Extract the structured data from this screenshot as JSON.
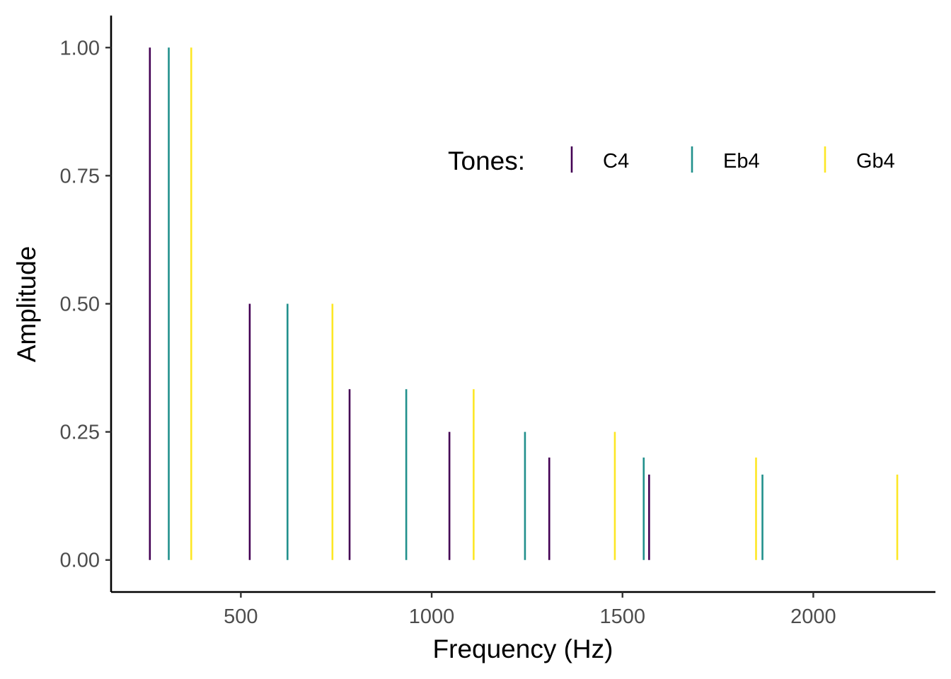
{
  "chart_data": {
    "type": "bar",
    "xlabel": "Frequency (Hz)",
    "ylabel": "Amplitude",
    "xlim": [
      160,
      2320
    ],
    "ylim": [
      -0.0625,
      1.0625
    ],
    "x_ticks": [
      500,
      1000,
      1500,
      2000
    ],
    "x_tick_labels": [
      "500",
      "1000",
      "1500",
      "2000"
    ],
    "y_ticks": [
      0,
      0.25,
      0.5,
      0.75,
      1.0
    ],
    "y_tick_labels": [
      "0.00",
      "0.25",
      "0.50",
      "0.75",
      "1.00"
    ],
    "grid": false,
    "legend": {
      "title": "Tones:",
      "position": "top-right",
      "orientation": "horizontal"
    },
    "series": [
      {
        "name": "C4",
        "color": "#440154",
        "points": [
          {
            "x": 261.63,
            "y": 1.0
          },
          {
            "x": 523.25,
            "y": 0.5
          },
          {
            "x": 784.88,
            "y": 0.3333
          },
          {
            "x": 1046.5,
            "y": 0.25
          },
          {
            "x": 1308.13,
            "y": 0.2
          },
          {
            "x": 1569.75,
            "y": 0.1667
          }
        ]
      },
      {
        "name": "Eb4",
        "color": "#21908C",
        "points": [
          {
            "x": 311.13,
            "y": 1.0
          },
          {
            "x": 622.25,
            "y": 0.5
          },
          {
            "x": 933.38,
            "y": 0.3333
          },
          {
            "x": 1244.51,
            "y": 0.25
          },
          {
            "x": 1555.63,
            "y": 0.2
          },
          {
            "x": 1866.76,
            "y": 0.1667
          }
        ]
      },
      {
        "name": "Gb4",
        "color": "#FDE725",
        "points": [
          {
            "x": 369.99,
            "y": 1.0
          },
          {
            "x": 739.99,
            "y": 0.5
          },
          {
            "x": 1109.98,
            "y": 0.3333
          },
          {
            "x": 1479.98,
            "y": 0.25
          },
          {
            "x": 1849.97,
            "y": 0.2
          },
          {
            "x": 2219.96,
            "y": 0.1667
          }
        ]
      }
    ]
  }
}
